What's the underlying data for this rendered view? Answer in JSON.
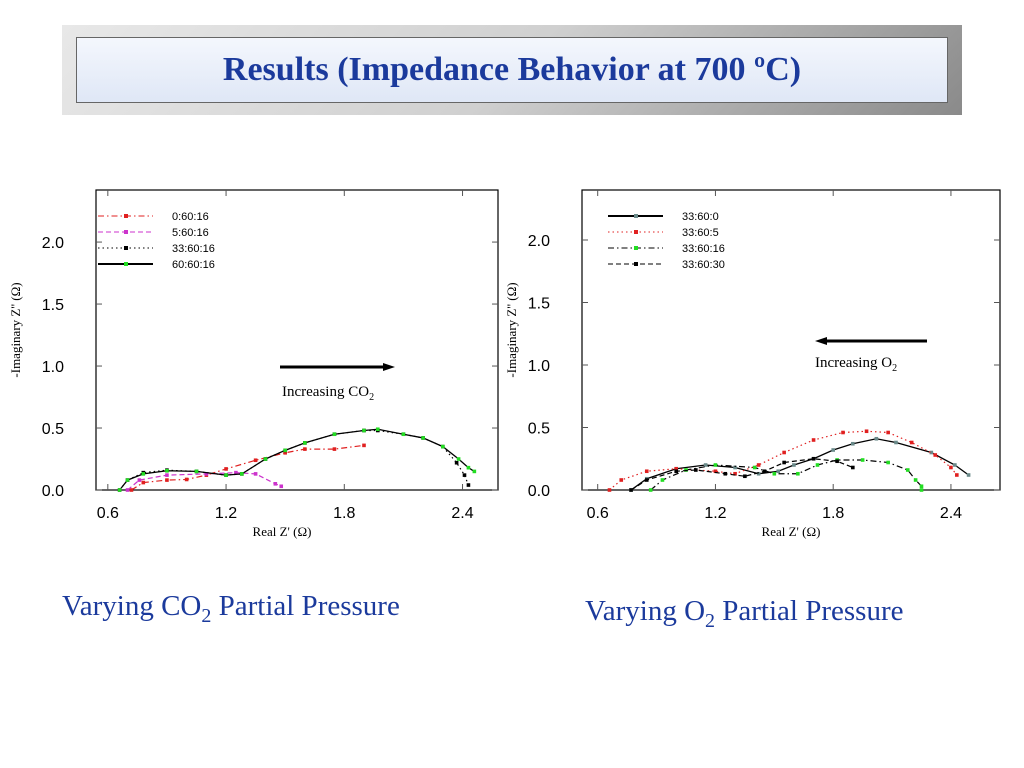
{
  "title": "Results (Impedance Behavior at 700 ºC)",
  "captions": {
    "left_pre": "Varying CO",
    "left_sub": "2",
    "left_post": " Partial Pressure",
    "right_pre": "Varying O",
    "right_sub": "2",
    "right_post": " Partial Pressure"
  },
  "chart_data": [
    {
      "type": "line",
      "xlabel": "Real Z' (Ω)",
      "ylabel": "-Imaginary Z'' (Ω)",
      "xlim": [
        0.54,
        2.58
      ],
      "ylim": [
        0,
        2.42
      ],
      "xticks": [
        0.6,
        1.2,
        1.8,
        2.4
      ],
      "yticks": [
        0.0,
        0.5,
        1.0,
        1.5,
        2.0
      ],
      "grid": false,
      "legend": "top-left",
      "annotation": {
        "text": "Increasing CO",
        "sub": "2",
        "arrow": "right"
      },
      "series": [
        {
          "name": "0:60:16",
          "color": "#e02020",
          "style": "dashdot",
          "x": [
            0.72,
            0.78,
            0.9,
            1.0,
            1.1,
            1.2,
            1.35,
            1.5,
            1.6,
            1.75,
            1.9
          ],
          "y": [
            0,
            0.06,
            0.08,
            0.085,
            0.12,
            0.17,
            0.24,
            0.3,
            0.33,
            0.33,
            0.36
          ]
        },
        {
          "name": "5:60:16",
          "color": "#cc33cc",
          "style": "dashed",
          "x": [
            0.7,
            0.76,
            0.9,
            1.1,
            1.25,
            1.35,
            1.45,
            1.48
          ],
          "y": [
            0,
            0.08,
            0.12,
            0.13,
            0.14,
            0.13,
            0.05,
            0.03
          ]
        },
        {
          "name": "33:60:16",
          "color": "#000000",
          "style": "dotted",
          "x": [
            0.66,
            0.7,
            0.78,
            0.9,
            1.05,
            1.2,
            1.28,
            1.4,
            1.5,
            1.6,
            1.75,
            1.9,
            1.97,
            2.1,
            2.2,
            2.3,
            2.37,
            2.41,
            2.43
          ],
          "y": [
            0,
            0.08,
            0.14,
            0.16,
            0.15,
            0.12,
            0.13,
            0.25,
            0.32,
            0.38,
            0.45,
            0.48,
            0.48,
            0.45,
            0.42,
            0.35,
            0.22,
            0.12,
            0.04
          ]
        },
        {
          "name": "60:60:16",
          "color": "#000000",
          "marker": "#22dd22",
          "style": "solid",
          "x": [
            0.66,
            0.7,
            0.78,
            0.9,
            1.05,
            1.2,
            1.28,
            1.4,
            1.5,
            1.6,
            1.75,
            1.9,
            1.97,
            2.1,
            2.2,
            2.3,
            2.38,
            2.43,
            2.46
          ],
          "y": [
            0,
            0.08,
            0.13,
            0.155,
            0.15,
            0.12,
            0.13,
            0.25,
            0.32,
            0.38,
            0.45,
            0.48,
            0.49,
            0.45,
            0.42,
            0.35,
            0.25,
            0.18,
            0.15
          ]
        }
      ]
    },
    {
      "type": "line",
      "xlabel": "Real Z' (Ω)",
      "ylabel": "-Imaginary Z'' (Ω)",
      "xlim": [
        0.52,
        2.65
      ],
      "ylim": [
        0,
        2.4
      ],
      "xticks": [
        0.6,
        1.2,
        1.8,
        2.4
      ],
      "yticks": [
        0.0,
        0.5,
        1.0,
        1.5,
        2.0
      ],
      "grid": false,
      "legend": "top-left",
      "annotation": {
        "text": "Increasing O",
        "sub": "2",
        "arrow": "left"
      },
      "series": [
        {
          "name": "33:60:0",
          "color": "#000000",
          "marker": "#6a8a8a",
          "style": "solid",
          "x": [
            0.77,
            0.85,
            1.0,
            1.15,
            1.3,
            1.42,
            1.52,
            1.6,
            1.7,
            1.8,
            1.9,
            2.02,
            2.12,
            2.3,
            2.42,
            2.49
          ],
          "y": [
            0,
            0.09,
            0.17,
            0.2,
            0.18,
            0.13,
            0.15,
            0.2,
            0.25,
            0.32,
            0.37,
            0.41,
            0.38,
            0.3,
            0.2,
            0.12
          ]
        },
        {
          "name": "33:60:5",
          "color": "#e02020",
          "style": "dotted",
          "x": [
            0.66,
            0.72,
            0.85,
            1.0,
            1.2,
            1.3,
            1.42,
            1.55,
            1.7,
            1.85,
            1.97,
            2.08,
            2.2,
            2.32,
            2.4,
            2.43
          ],
          "y": [
            0,
            0.08,
            0.15,
            0.17,
            0.15,
            0.13,
            0.2,
            0.3,
            0.4,
            0.46,
            0.47,
            0.46,
            0.38,
            0.28,
            0.18,
            0.12
          ]
        },
        {
          "name": "33:60:16",
          "color": "#000000",
          "marker": "#22dd22",
          "style": "dashdot",
          "x": [
            0.87,
            0.93,
            1.05,
            1.2,
            1.4,
            1.5,
            1.62,
            1.72,
            1.82,
            1.95,
            2.08,
            2.18,
            2.22,
            2.25,
            2.25
          ],
          "y": [
            0,
            0.08,
            0.16,
            0.2,
            0.18,
            0.13,
            0.13,
            0.2,
            0.24,
            0.24,
            0.22,
            0.16,
            0.08,
            0.03,
            0
          ]
        },
        {
          "name": "33:60:30",
          "color": "#000000",
          "style": "dashed",
          "x": [
            0.77,
            0.85,
            1.0,
            1.1,
            1.25,
            1.35,
            1.45,
            1.55,
            1.7,
            1.82,
            1.9
          ],
          "y": [
            0,
            0.08,
            0.15,
            0.16,
            0.13,
            0.11,
            0.15,
            0.22,
            0.25,
            0.23,
            0.18
          ]
        }
      ]
    }
  ]
}
